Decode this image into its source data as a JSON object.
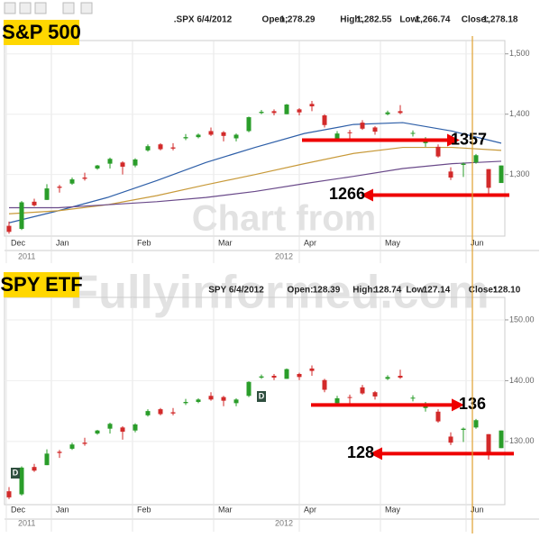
{
  "watermark": [
    "Chart from",
    "Fullyinformed.com"
  ],
  "chart_data": [
    {
      "type": "candlestick",
      "badge": "S&P 500",
      "header": [
        ".SPX 6/4/2012",
        "Open:",
        "1,278.29",
        "High:",
        "1,282.55",
        "Low:",
        "1,266.74",
        "Close:",
        "1,278.18"
      ],
      "months": [
        "Dec",
        "Jan",
        "Feb",
        "Mar",
        "Apr",
        "May",
        "Jun"
      ],
      "years": [
        "2011",
        "2012"
      ],
      "ylim": [
        1198,
        1522
      ],
      "yticks": [
        {
          "value": 1300,
          "label": "1,300"
        },
        {
          "value": 1400,
          "label": "1,400"
        },
        {
          "value": 1500,
          "label": "1,500"
        }
      ],
      "open": [
        1215,
        1210,
        1255,
        1258,
        1280,
        1285,
        1295,
        1310,
        1318,
        1320,
        1315,
        1340,
        1350,
        1345,
        1360,
        1362,
        1372,
        1370,
        1360,
        1372,
        1402,
        1405,
        1400,
        1408,
        1417,
        1398,
        1360,
        1370,
        1386,
        1378,
        1400,
        1405,
        1368,
        1352,
        1346,
        1305,
        1316,
        1320,
        1309,
        1286
      ],
      "high": [
        1222,
        1256,
        1260,
        1284,
        1283,
        1295,
        1303,
        1316,
        1328,
        1322,
        1327,
        1350,
        1352,
        1352,
        1367,
        1368,
        1378,
        1372,
        1368,
        1396,
        1407,
        1408,
        1417,
        1410,
        1422,
        1400,
        1372,
        1374,
        1390,
        1380,
        1406,
        1415,
        1373,
        1362,
        1350,
        1312,
        1320,
        1334,
        1309,
        1315
      ],
      "low": [
        1202,
        1208,
        1247,
        1258,
        1270,
        1283,
        1290,
        1308,
        1310,
        1300,
        1312,
        1338,
        1340,
        1340,
        1357,
        1360,
        1364,
        1355,
        1355,
        1370,
        1400,
        1398,
        1400,
        1398,
        1405,
        1378,
        1357,
        1359,
        1374,
        1366,
        1398,
        1400,
        1363,
        1346,
        1328,
        1291,
        1296,
        1318,
        1267,
        1286
      ],
      "close": [
        1205,
        1254,
        1249,
        1277,
        1278,
        1292,
        1293,
        1315,
        1326,
        1313,
        1325,
        1347,
        1342,
        1343,
        1362,
        1366,
        1366,
        1364,
        1366,
        1395,
        1404,
        1402,
        1416,
        1403,
        1413,
        1382,
        1368,
        1369,
        1376,
        1371,
        1403,
        1402,
        1369,
        1357,
        1330,
        1295,
        1318,
        1332,
        1278,
        1315
      ],
      "up_color": "#2a9d2a",
      "down_color": "#d22a2a",
      "overlays": [
        {
          "color": "#2e5fa8",
          "values": [
            1220,
            1240,
            1262,
            1290,
            1320,
            1345,
            1368,
            1383,
            1386,
            1372,
            1352
          ]
        },
        {
          "color": "#c89a3a",
          "values": [
            1235,
            1240,
            1250,
            1265,
            1283,
            1300,
            1318,
            1335,
            1345,
            1345,
            1340
          ]
        },
        {
          "color": "#6a4a8a",
          "values": [
            1245,
            1245,
            1250,
            1255,
            1262,
            1272,
            1285,
            1297,
            1310,
            1318,
            1322
          ]
        }
      ],
      "annotations": [
        {
          "label": "1357",
          "value": 1357
        },
        {
          "label": "1266",
          "value": 1266
        }
      ]
    },
    {
      "type": "candlestick",
      "badge": "SPY ETF",
      "header": [
        "SPY 6/4/2012",
        "Open:",
        "128.39",
        "High:",
        "128.74",
        "Low:",
        "127.14",
        "Close:",
        "128.10"
      ],
      "months": [
        "Dec",
        "Jan",
        "Feb",
        "Mar",
        "Apr",
        "May",
        "Jun"
      ],
      "years": [
        "2011",
        "2012"
      ],
      "ylim": [
        119.6,
        153.7
      ],
      "yticks": [
        {
          "value": 130,
          "label": "130.00"
        },
        {
          "value": 140,
          "label": "140.00"
        },
        {
          "value": 150,
          "label": "150.00"
        }
      ],
      "open": [
        121.8,
        121.3,
        125.8,
        126.1,
        128.3,
        128.8,
        129.8,
        131.3,
        132.1,
        132.3,
        131.8,
        134.3,
        135.3,
        134.8,
        136.3,
        136.5,
        137.5,
        137.3,
        136.3,
        137.5,
        140.5,
        140.8,
        140.3,
        141.1,
        142.0,
        140.1,
        136.3,
        137.3,
        138.9,
        138.1,
        140.3,
        140.8,
        137.1,
        135.5,
        134.9,
        130.8,
        131.9,
        132.3,
        131.2,
        128.9
      ],
      "high": [
        122.5,
        125.9,
        126.3,
        128.7,
        128.6,
        129.8,
        130.6,
        131.9,
        133.1,
        132.5,
        133.0,
        135.3,
        135.5,
        135.5,
        137.0,
        137.1,
        138.1,
        137.5,
        137.1,
        139.9,
        141.0,
        141.1,
        142.0,
        141.3,
        142.5,
        140.3,
        137.5,
        137.7,
        139.3,
        138.3,
        140.9,
        141.8,
        137.6,
        136.5,
        135.3,
        131.5,
        132.3,
        133.7,
        131.2,
        131.8
      ],
      "low": [
        120.5,
        121.1,
        125.0,
        126.1,
        127.3,
        128.6,
        129.3,
        131.1,
        131.3,
        130.3,
        131.5,
        134.1,
        134.3,
        134.3,
        136.0,
        136.3,
        136.7,
        135.8,
        135.8,
        137.3,
        140.3,
        140.1,
        140.3,
        140.1,
        140.8,
        138.1,
        136.0,
        136.2,
        137.7,
        136.9,
        140.1,
        140.3,
        136.6,
        134.9,
        133.1,
        129.4,
        129.9,
        132.1,
        127.0,
        128.9
      ],
      "close": [
        120.8,
        125.7,
        125.2,
        128.0,
        128.1,
        129.5,
        129.6,
        131.8,
        132.9,
        131.6,
        132.8,
        135.0,
        134.5,
        134.6,
        136.5,
        136.9,
        136.9,
        136.7,
        136.9,
        139.8,
        140.7,
        140.5,
        141.9,
        140.6,
        141.6,
        138.5,
        137.1,
        137.2,
        137.9,
        137.4,
        140.6,
        140.5,
        137.2,
        136.0,
        133.3,
        129.8,
        132.1,
        133.5,
        128.1,
        131.8
      ],
      "up_color": "#2a9d2a",
      "down_color": "#d22a2a",
      "events": [
        "D",
        "D"
      ],
      "annotations": [
        {
          "label": "136",
          "value": 136
        },
        {
          "label": "128",
          "value": 128
        }
      ]
    }
  ]
}
